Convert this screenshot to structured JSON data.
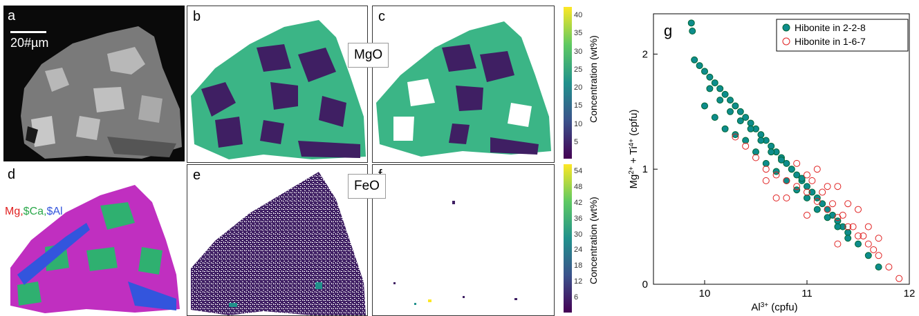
{
  "panels": {
    "a": {
      "label": "a",
      "scalebar": "20#µm"
    },
    "b": {
      "label": "b"
    },
    "c": {
      "label": "c"
    },
    "d": {
      "label": "d",
      "legend": [
        {
          "text": "Mg,",
          "color": "#e02020"
        },
        {
          "text": "$Ca,",
          "color": "#2aa84a"
        },
        {
          "text": "$Al",
          "color": "#3355dd"
        }
      ]
    },
    "e": {
      "label": "e"
    },
    "f": {
      "label": "f"
    },
    "g": {
      "label": "g"
    }
  },
  "map_labels": {
    "mgo": "MgO",
    "feo": "FeO"
  },
  "colorbars": {
    "top": {
      "label": "Concentration (wt%)",
      "ticks": [
        "40",
        "35",
        "30",
        "25",
        "20",
        "15",
        "10",
        "5"
      ]
    },
    "bottom": {
      "label": "Concentration (wt%)",
      "ticks": [
        "54",
        "48",
        "42",
        "36",
        "30",
        "24",
        "18",
        "12",
        "6"
      ]
    }
  },
  "colors": {
    "mgo_high": "#3bb586",
    "mgo_low": "#3f1f63",
    "mg_map": "#c02fc0",
    "ca_map": "#2fb070",
    "al_map": "#3355dd",
    "teal": "#0e8c8c",
    "red": "#e02020"
  },
  "chart_data": {
    "type": "scatter",
    "xlabel": "Al3+ (cpfu)",
    "ylabel": "Mg2+ + Ti4+ (cpfu)",
    "xlim": [
      9.5,
      12
    ],
    "ylim": [
      0,
      2.35
    ],
    "xticks": [
      10,
      11,
      12
    ],
    "yticks": [
      0,
      1,
      2
    ],
    "legend_position": "top-right",
    "series": [
      {
        "name": "Hibonite in 2-2-8",
        "marker": "filled-circle",
        "color": "#0e8c8c",
        "x": [
          9.87,
          9.88,
          9.9,
          9.95,
          10.0,
          10.05,
          10.1,
          10.15,
          10.2,
          10.25,
          10.3,
          10.35,
          10.4,
          10.45,
          10.5,
          10.55,
          10.6,
          10.65,
          10.7,
          10.75,
          10.8,
          10.85,
          10.9,
          10.95,
          11.0,
          11.05,
          11.1,
          11.15,
          11.2,
          11.25,
          11.3,
          11.35,
          11.4,
          11.5,
          11.6,
          11.7,
          10.0,
          10.1,
          10.2,
          10.3,
          10.4,
          10.5,
          10.6,
          10.7,
          10.8,
          10.9,
          11.0,
          11.1,
          11.2,
          11.3,
          11.4,
          10.05,
          10.15,
          10.25,
          10.35,
          10.45,
          10.55,
          10.65,
          10.75,
          10.85,
          10.95
        ],
        "y": [
          2.27,
          2.2,
          1.95,
          1.9,
          1.85,
          1.8,
          1.75,
          1.7,
          1.65,
          1.6,
          1.55,
          1.5,
          1.45,
          1.4,
          1.35,
          1.3,
          1.25,
          1.2,
          1.15,
          1.1,
          1.05,
          1.0,
          0.95,
          0.9,
          0.85,
          0.8,
          0.75,
          0.7,
          0.65,
          0.6,
          0.55,
          0.5,
          0.45,
          0.35,
          0.25,
          0.15,
          1.55,
          1.45,
          1.35,
          1.3,
          1.25,
          1.15,
          1.05,
          0.98,
          0.9,
          0.82,
          0.75,
          0.65,
          0.58,
          0.5,
          0.4,
          1.7,
          1.6,
          1.5,
          1.42,
          1.35,
          1.25,
          1.15,
          1.08,
          1.0,
          0.92
        ]
      },
      {
        "name": "Hibonite in 1-6-7",
        "marker": "open-circle",
        "color": "#e02020",
        "x": [
          10.3,
          10.4,
          10.5,
          10.6,
          10.7,
          10.8,
          10.9,
          11.0,
          11.1,
          11.2,
          11.3,
          11.4,
          11.5,
          11.6,
          11.7,
          11.8,
          11.9,
          10.6,
          10.8,
          11.0,
          11.2,
          11.4,
          11.6,
          10.9,
          11.1,
          11.3,
          11.5,
          11.7,
          10.7,
          11.0,
          11.3,
          11.05,
          11.15,
          11.25,
          11.35,
          11.45,
          11.55,
          11.65
        ],
        "y": [
          1.28,
          1.2,
          1.1,
          1.0,
          0.95,
          0.9,
          0.85,
          0.8,
          0.72,
          0.65,
          0.58,
          0.5,
          0.42,
          0.35,
          0.25,
          0.15,
          0.05,
          0.9,
          0.75,
          0.95,
          0.85,
          0.7,
          0.5,
          1.05,
          1.0,
          0.85,
          0.65,
          0.4,
          0.75,
          0.6,
          0.35,
          0.9,
          0.8,
          0.7,
          0.6,
          0.5,
          0.42,
          0.3
        ]
      }
    ]
  }
}
